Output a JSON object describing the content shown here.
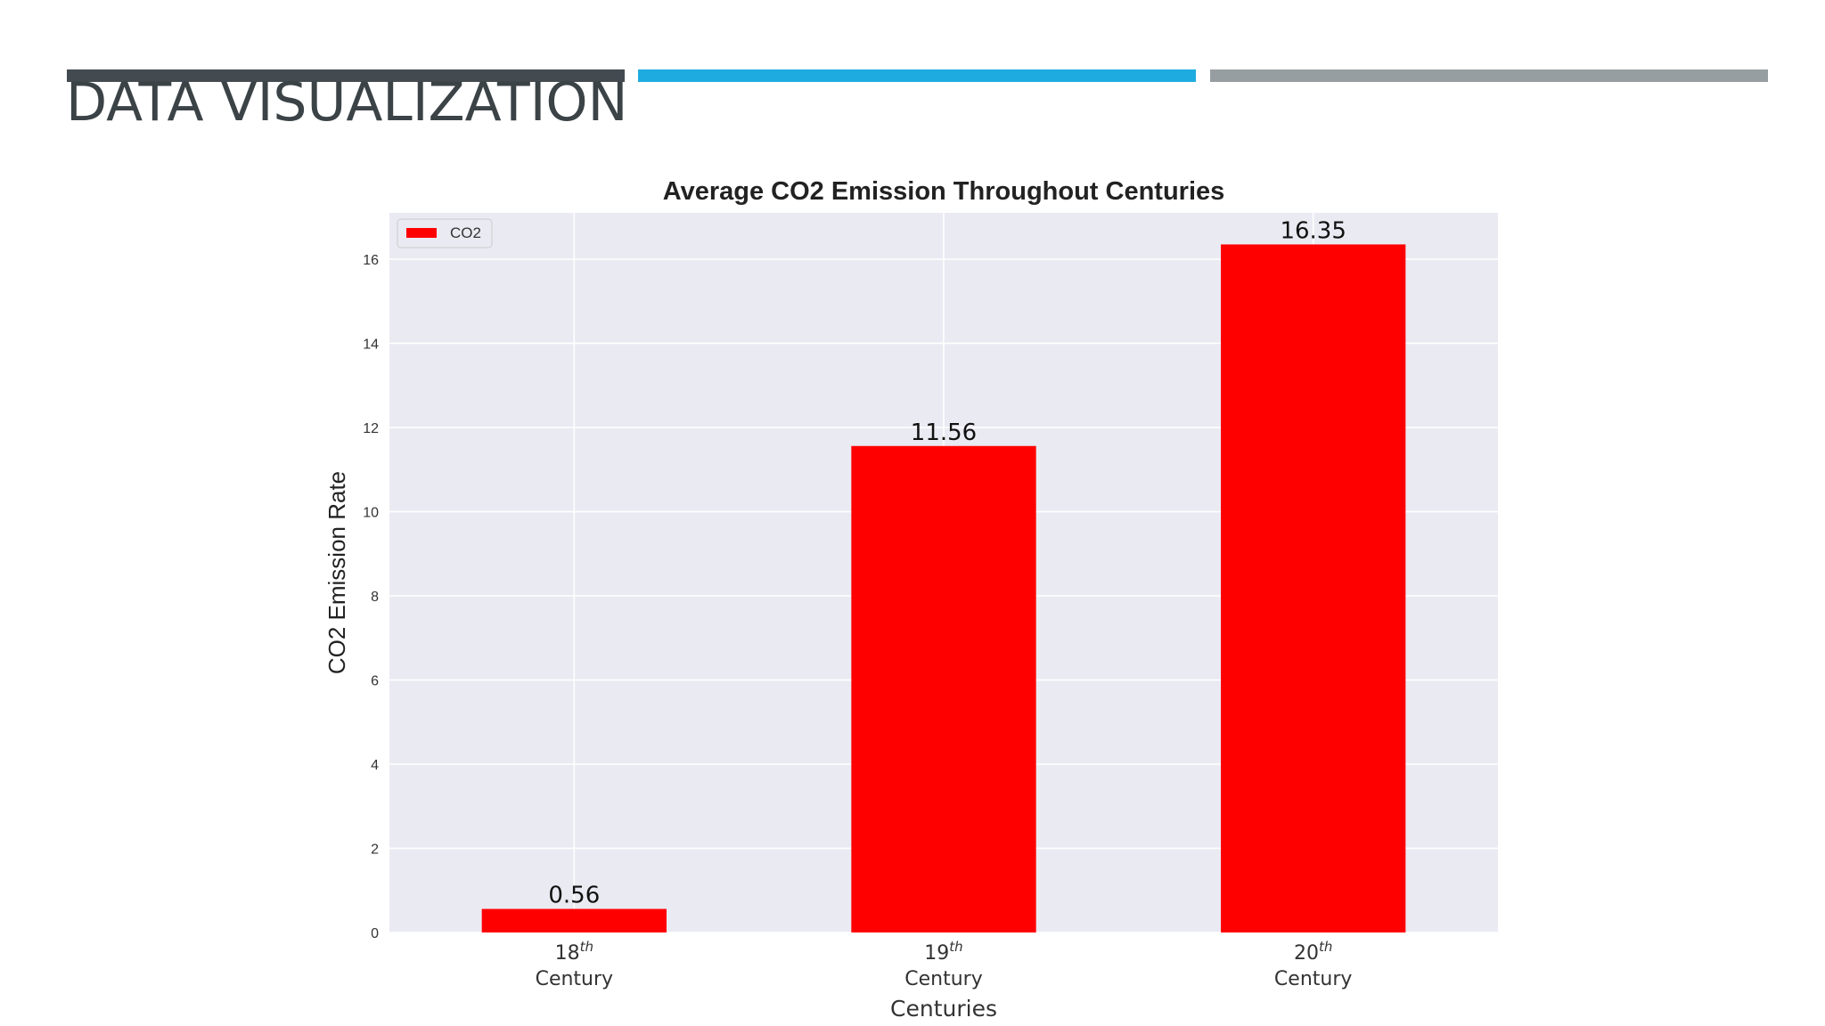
{
  "slide": {
    "title": "DATA VISUALIZATION"
  },
  "colors": {
    "accent_dark": "#434b51",
    "accent_blue": "#1eace0",
    "accent_gray": "#979ea1",
    "plot_background": "#eaeaf2",
    "grid": "#ffffff",
    "bar": "#ff0000"
  },
  "chart_data": {
    "type": "bar",
    "title": "Average CO2 Emission Throughout Centuries",
    "xlabel": "Centuries",
    "ylabel": "CO2 Emission Rate",
    "categories": [
      {
        "ordinal": "18",
        "suffix": "th",
        "label": "Century"
      },
      {
        "ordinal": "19",
        "suffix": "th",
        "label": "Century"
      },
      {
        "ordinal": "20",
        "suffix": "th",
        "label": "Century"
      }
    ],
    "series": [
      {
        "name": "CO2",
        "color": "#ff0000",
        "values": [
          0.56,
          11.56,
          16.35
        ]
      }
    ],
    "data_labels": [
      "0.56",
      "11.56",
      "16.35"
    ],
    "ylim": [
      0,
      17.1
    ],
    "yticks": [
      0,
      2,
      4,
      6,
      8,
      10,
      12,
      14,
      16
    ],
    "grid": true,
    "legend_position": "top-left"
  }
}
